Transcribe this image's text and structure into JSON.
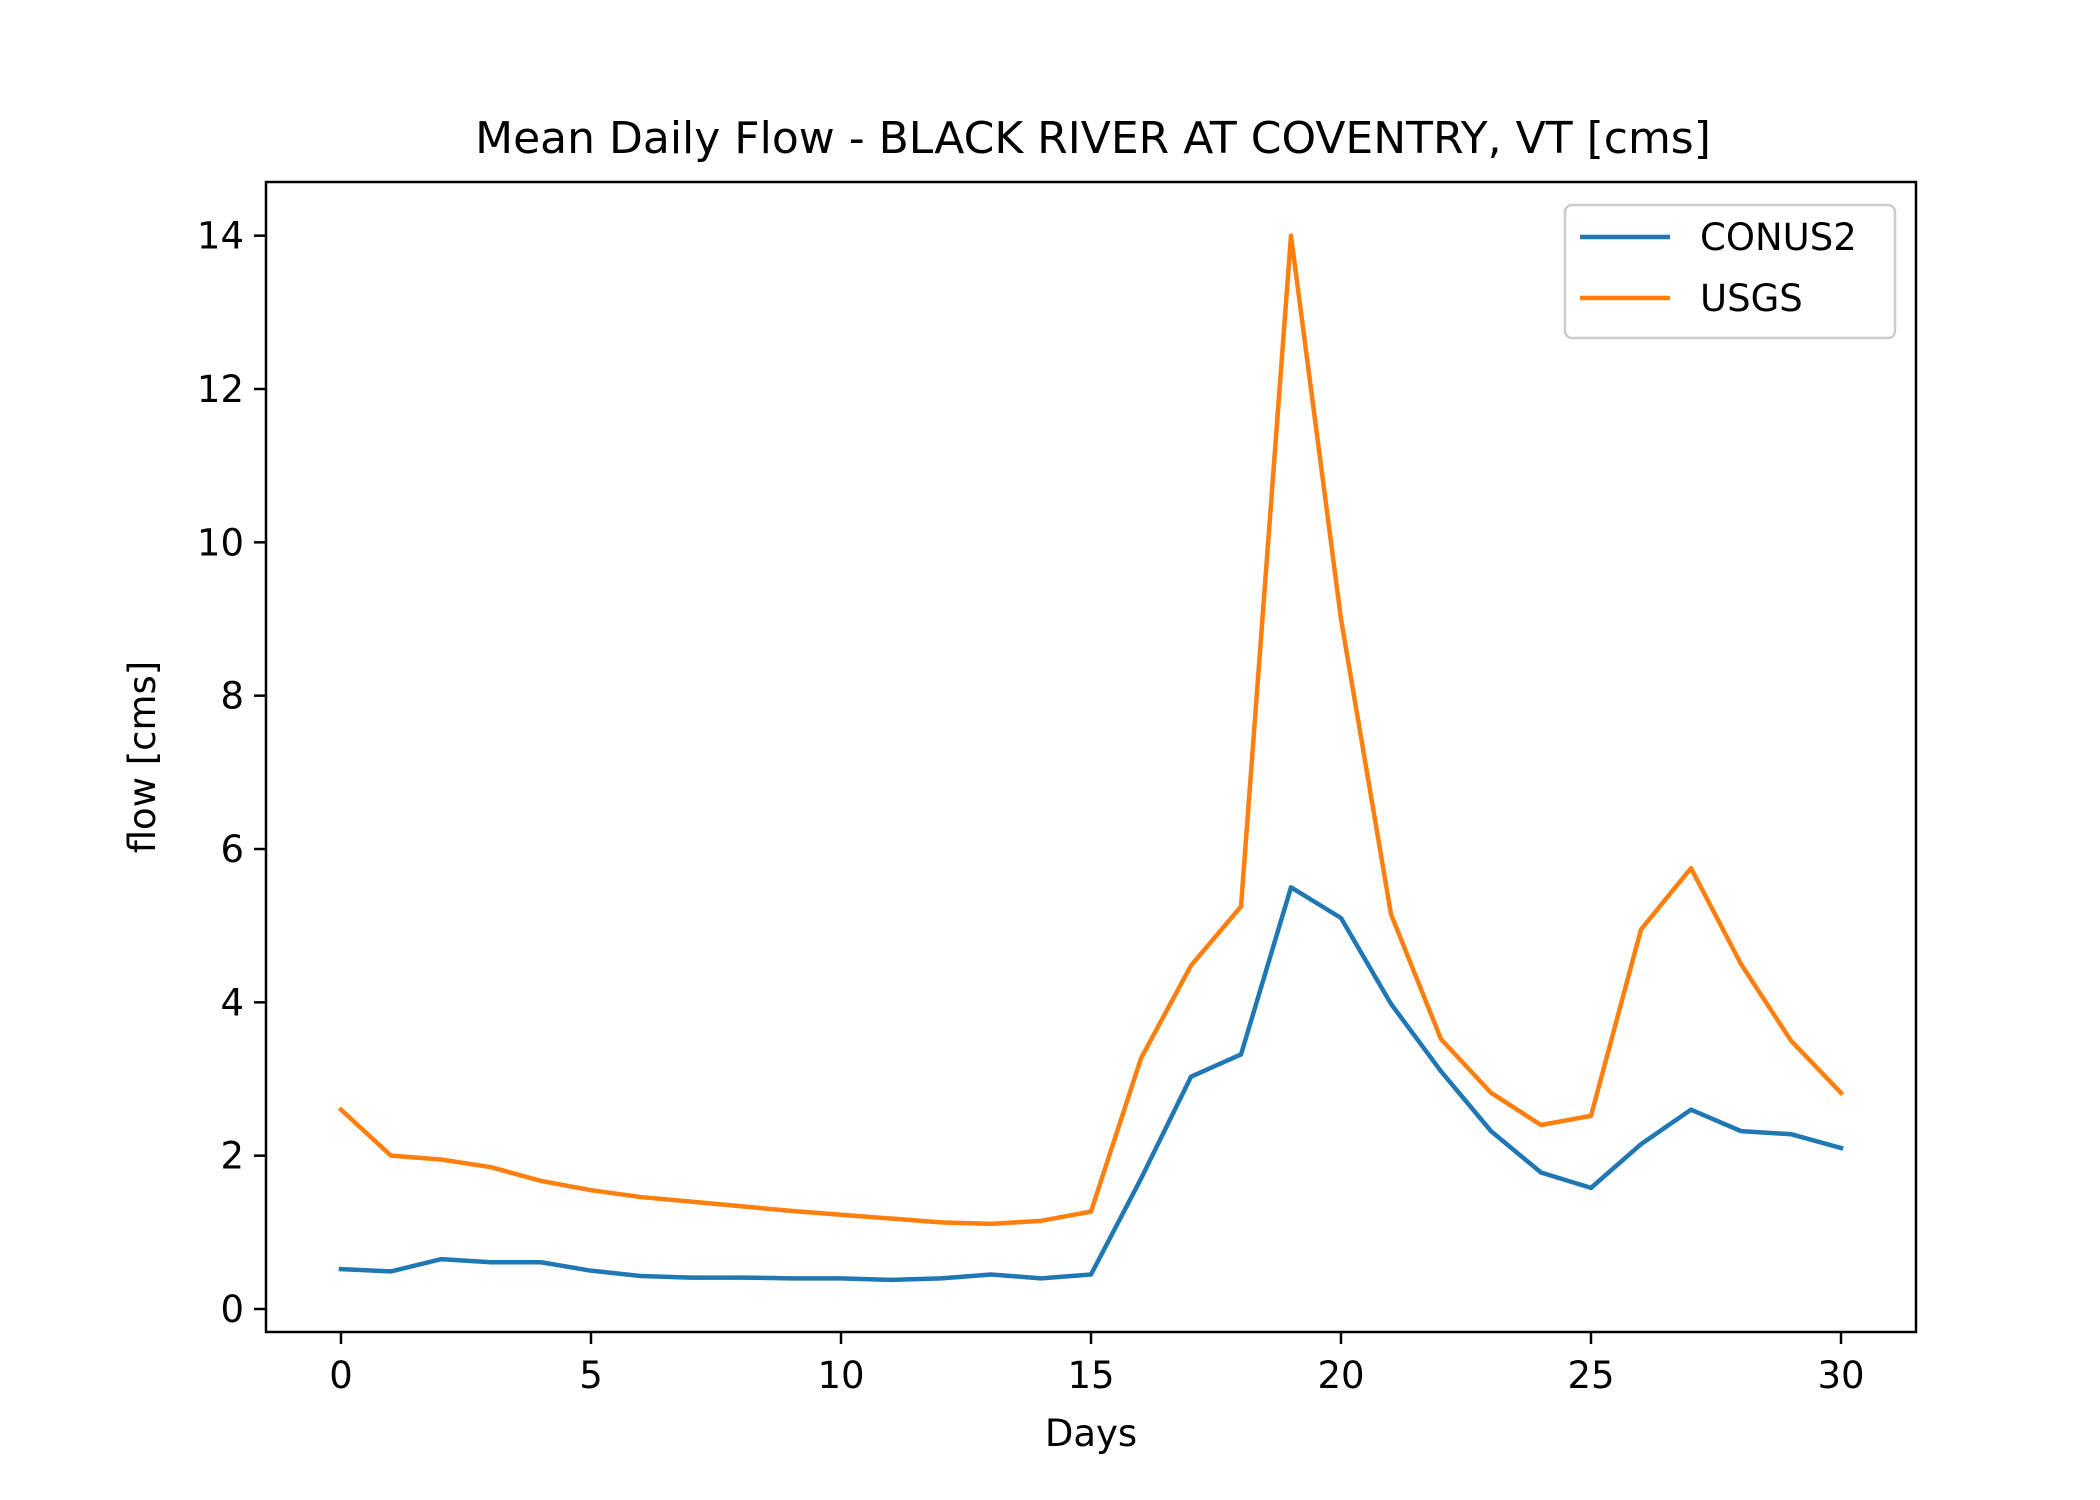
{
  "chart_data": {
    "type": "line",
    "title": "Mean Daily Flow - BLACK RIVER AT COVENTRY, VT [cms]",
    "xlabel": "Days",
    "ylabel": "flow [cms]",
    "xlim": [
      -1.5,
      31.5
    ],
    "ylim": [
      -0.3,
      14.7
    ],
    "xticks": [
      0,
      5,
      10,
      15,
      20,
      25,
      30
    ],
    "yticks": [
      0,
      2,
      4,
      6,
      8,
      10,
      12,
      14
    ],
    "x": [
      0,
      1,
      2,
      3,
      4,
      5,
      6,
      7,
      8,
      9,
      10,
      11,
      12,
      13,
      14,
      15,
      16,
      17,
      18,
      19,
      20,
      21,
      22,
      23,
      24,
      25,
      26,
      27,
      28,
      29,
      30
    ],
    "grid": false,
    "legend_position": "top-right",
    "series": [
      {
        "name": "CONUS2",
        "color": "#1f77b4",
        "values": [
          0.52,
          0.49,
          0.65,
          0.61,
          0.61,
          0.5,
          0.43,
          0.41,
          0.41,
          0.4,
          0.4,
          0.38,
          0.4,
          0.45,
          0.4,
          0.45,
          1.7,
          3.03,
          3.32,
          5.5,
          5.1,
          3.98,
          3.1,
          2.32,
          1.78,
          1.58,
          2.15,
          2.6,
          2.32,
          2.28,
          2.1
        ]
      },
      {
        "name": "USGS",
        "color": "#ff7f0e",
        "values": [
          2.6,
          2.0,
          1.95,
          1.85,
          1.67,
          1.55,
          1.46,
          1.4,
          1.34,
          1.28,
          1.23,
          1.18,
          1.13,
          1.11,
          1.15,
          1.27,
          3.27,
          4.48,
          5.25,
          14.0,
          9.0,
          5.15,
          3.52,
          2.82,
          2.4,
          2.52,
          4.95,
          5.75,
          4.5,
          3.5,
          2.82
        ]
      }
    ]
  }
}
